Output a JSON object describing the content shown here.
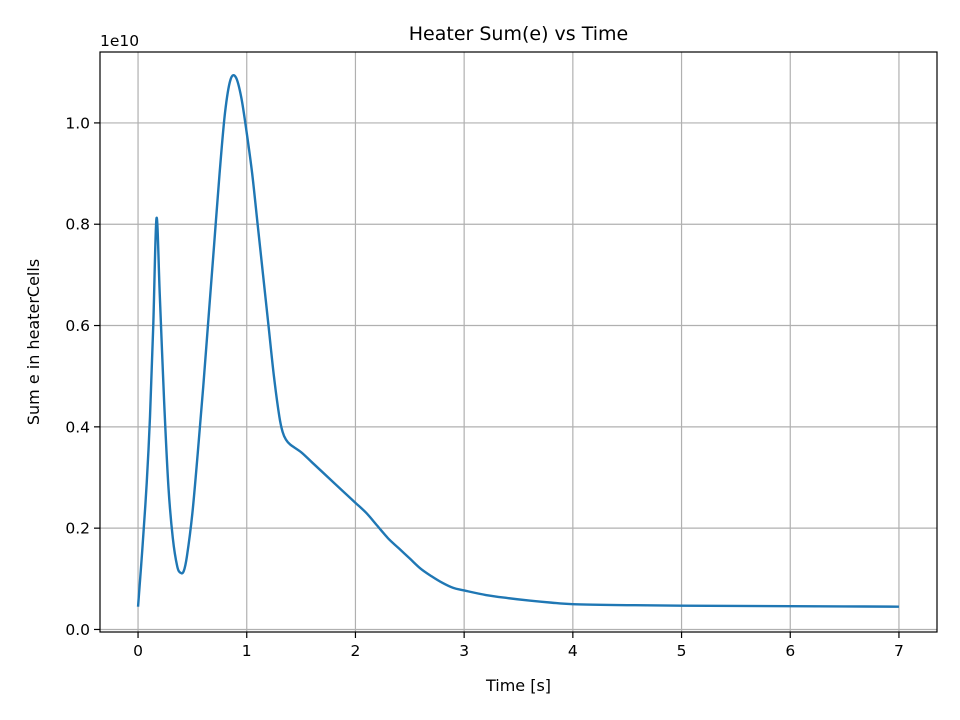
{
  "chart_data": {
    "type": "line",
    "title": "Heater Sum(e) vs Time",
    "xlabel": "Time [s]",
    "ylabel": "Sum e in heaterCells",
    "y_offset_label": "1e10",
    "xlim": [
      -0.35,
      7.35
    ],
    "ylim": [
      -0.005,
      1.14
    ],
    "x_ticks": [
      0,
      1,
      2,
      3,
      4,
      5,
      6,
      7
    ],
    "x_tick_labels": [
      "0",
      "1",
      "2",
      "3",
      "4",
      "5",
      "6",
      "7"
    ],
    "y_ticks": [
      0.0,
      0.2,
      0.4,
      0.6,
      0.8,
      1.0
    ],
    "y_tick_labels": [
      "0.0",
      "0.2",
      "0.4",
      "0.6",
      "0.8",
      "1.0"
    ],
    "grid": true,
    "series": [
      {
        "color": "#1f77b4",
        "x": [
          0,
          0.04,
          0.08,
          0.11,
          0.14,
          0.17,
          0.2,
          0.24,
          0.28,
          0.32,
          0.36,
          0.39,
          0.42,
          0.45,
          0.5,
          0.55,
          0.6,
          0.65,
          0.7,
          0.75,
          0.8,
          0.85,
          0.9,
          0.95,
          1.0,
          1.05,
          1.1,
          1.15,
          1.2,
          1.25,
          1.3,
          1.33,
          1.36,
          1.4,
          1.5,
          1.6,
          1.7,
          1.8,
          1.9,
          2.0,
          2.1,
          2.2,
          2.3,
          2.4,
          2.5,
          2.6,
          2.7,
          2.8,
          2.9,
          3.0,
          3.2,
          3.4,
          3.6,
          3.8,
          4.0,
          4.5,
          5.0,
          5.5,
          6.0,
          6.5,
          7.0
        ],
        "y": [
          0.045,
          0.16,
          0.29,
          0.42,
          0.6,
          0.812,
          0.66,
          0.45,
          0.28,
          0.18,
          0.125,
          0.112,
          0.115,
          0.145,
          0.23,
          0.35,
          0.48,
          0.62,
          0.76,
          0.9,
          1.02,
          1.085,
          1.09,
          1.05,
          0.98,
          0.9,
          0.8,
          0.7,
          0.6,
          0.5,
          0.42,
          0.39,
          0.375,
          0.365,
          0.35,
          0.33,
          0.31,
          0.29,
          0.27,
          0.25,
          0.23,
          0.205,
          0.18,
          0.16,
          0.14,
          0.12,
          0.105,
          0.092,
          0.082,
          0.077,
          0.068,
          0.062,
          0.057,
          0.053,
          0.05,
          0.048,
          0.047,
          0.0465,
          0.046,
          0.0455,
          0.045
        ]
      }
    ]
  }
}
